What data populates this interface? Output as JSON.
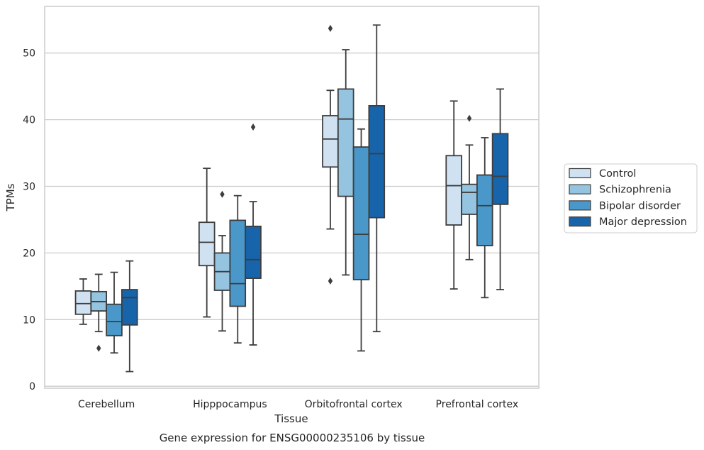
{
  "chart_data": {
    "type": "box",
    "caption": "Gene expression for ENSG00000235106 by tissue",
    "xlabel": "Tissue",
    "ylabel": "TPMs",
    "ylim": [
      -0.3,
      57
    ],
    "yticks": [
      0,
      10,
      20,
      30,
      40,
      50
    ],
    "grid": "horizontal",
    "legend_position": "right",
    "categories": [
      "Cerebellum",
      "Hipppocampus",
      "Orbitofrontal cortex",
      "Prefrontal cortex"
    ],
    "series": [
      {
        "name": "Control",
        "color": "#d0e1f2",
        "boxes": [
          {
            "whisker_low": 9.3,
            "q1": 10.8,
            "median": 12.4,
            "q3": 14.3,
            "whisker_high": 16.1,
            "outliers": []
          },
          {
            "whisker_low": 10.4,
            "q1": 18.1,
            "median": 21.6,
            "q3": 24.6,
            "whisker_high": 32.7,
            "outliers": []
          },
          {
            "whisker_low": 23.6,
            "q1": 32.9,
            "median": 37.1,
            "q3": 40.6,
            "whisker_high": 44.4,
            "outliers": [
              53.7,
              15.8
            ]
          },
          {
            "whisker_low": 14.6,
            "q1": 24.2,
            "median": 30.1,
            "q3": 34.6,
            "whisker_high": 42.8,
            "outliers": []
          }
        ]
      },
      {
        "name": "Schizophrenia",
        "color": "#94c4df",
        "boxes": [
          {
            "whisker_low": 8.2,
            "q1": 11.3,
            "median": 12.7,
            "q3": 14.2,
            "whisker_high": 16.8,
            "outliers": [
              5.7
            ]
          },
          {
            "whisker_low": 8.3,
            "q1": 14.4,
            "median": 17.2,
            "q3": 20.0,
            "whisker_high": 22.6,
            "outliers": [
              28.8
            ]
          },
          {
            "whisker_low": 16.7,
            "q1": 28.5,
            "median": 40.1,
            "q3": 44.6,
            "whisker_high": 50.5,
            "outliers": []
          },
          {
            "whisker_low": 19.0,
            "q1": 25.8,
            "median": 29.1,
            "q3": 30.3,
            "whisker_high": 36.2,
            "outliers": [
              40.2
            ]
          }
        ]
      },
      {
        "name": "Bipolar disorder",
        "color": "#4a98c9",
        "boxes": [
          {
            "whisker_low": 5.0,
            "q1": 7.6,
            "median": 9.7,
            "q3": 12.3,
            "whisker_high": 17.1,
            "outliers": []
          },
          {
            "whisker_low": 6.5,
            "q1": 12.0,
            "median": 15.4,
            "q3": 24.9,
            "whisker_high": 28.6,
            "outliers": []
          },
          {
            "whisker_low": 5.3,
            "q1": 16.0,
            "median": 22.8,
            "q3": 35.9,
            "whisker_high": 38.6,
            "outliers": []
          },
          {
            "whisker_low": 13.3,
            "q1": 21.1,
            "median": 27.1,
            "q3": 31.7,
            "whisker_high": 37.3,
            "outliers": []
          }
        ]
      },
      {
        "name": "Major depression",
        "color": "#1764ab",
        "boxes": [
          {
            "whisker_low": 2.2,
            "q1": 9.2,
            "median": 13.3,
            "q3": 14.5,
            "whisker_high": 18.8,
            "outliers": []
          },
          {
            "whisker_low": 6.2,
            "q1": 16.2,
            "median": 19.0,
            "q3": 24.0,
            "whisker_high": 27.7,
            "outliers": [
              38.9
            ]
          },
          {
            "whisker_low": 8.2,
            "q1": 25.3,
            "median": 34.9,
            "q3": 42.1,
            "whisker_high": 54.2,
            "outliers": []
          },
          {
            "whisker_low": 14.5,
            "q1": 27.3,
            "median": 31.5,
            "q3": 37.9,
            "whisker_high": 44.6,
            "outliers": []
          }
        ]
      }
    ]
  }
}
